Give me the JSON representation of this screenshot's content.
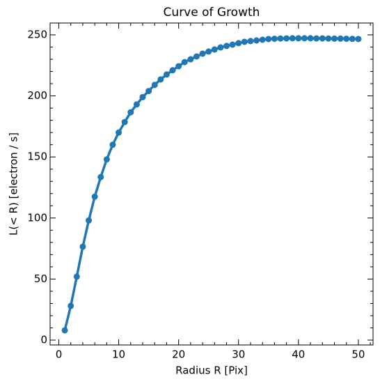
{
  "chart_data": {
    "type": "line",
    "title": "Curve of Growth",
    "x_label": "Radius R [Pix]",
    "y_label": "L(< R) [electron / s]",
    "color": "#1f77b4",
    "markers": true,
    "x": [
      1,
      2,
      3,
      4,
      5,
      6,
      7,
      8,
      9,
      10,
      11,
      12,
      13,
      14,
      15,
      16,
      17,
      18,
      19,
      20,
      21,
      22,
      23,
      24,
      25,
      26,
      27,
      28,
      29,
      30,
      31,
      32,
      33,
      34,
      35,
      36,
      37,
      38,
      39,
      40,
      41,
      42,
      43,
      44,
      45,
      46,
      47,
      48,
      49,
      50
    ],
    "values": [
      8,
      28,
      52,
      76.5,
      98,
      117.5,
      133.5,
      148,
      160,
      170,
      178.6,
      186.6,
      193,
      199,
      204,
      209,
      213.5,
      217.5,
      221,
      224.3,
      227.7,
      230,
      232.3,
      234.6,
      236.3,
      238,
      239.7,
      240.9,
      242,
      243.2,
      244.3,
      244.9,
      245.4,
      246,
      246.6,
      246.8,
      247,
      247.1,
      247.2,
      247.2,
      247.2,
      247.2,
      247.1,
      247.1,
      247,
      246.9,
      246.9,
      246.8,
      246.7,
      246.6
    ],
    "xlim": [
      -1.45,
      52.45
    ],
    "ylim": [
      -4,
      259.7
    ],
    "xticks": [
      0,
      10,
      20,
      30,
      40,
      50
    ],
    "yticks": [
      0,
      50,
      100,
      150,
      200,
      250
    ],
    "minor_xticks": [
      2,
      4,
      6,
      8,
      12,
      14,
      16,
      18,
      22,
      24,
      26,
      28,
      32,
      34,
      36,
      38,
      42,
      44,
      46,
      48,
      52
    ],
    "minor_yticks": [
      10,
      20,
      30,
      40,
      60,
      70,
      80,
      90,
      110,
      120,
      130,
      140,
      160,
      170,
      180,
      190,
      210,
      220,
      230,
      240
    ],
    "grid": false
  }
}
